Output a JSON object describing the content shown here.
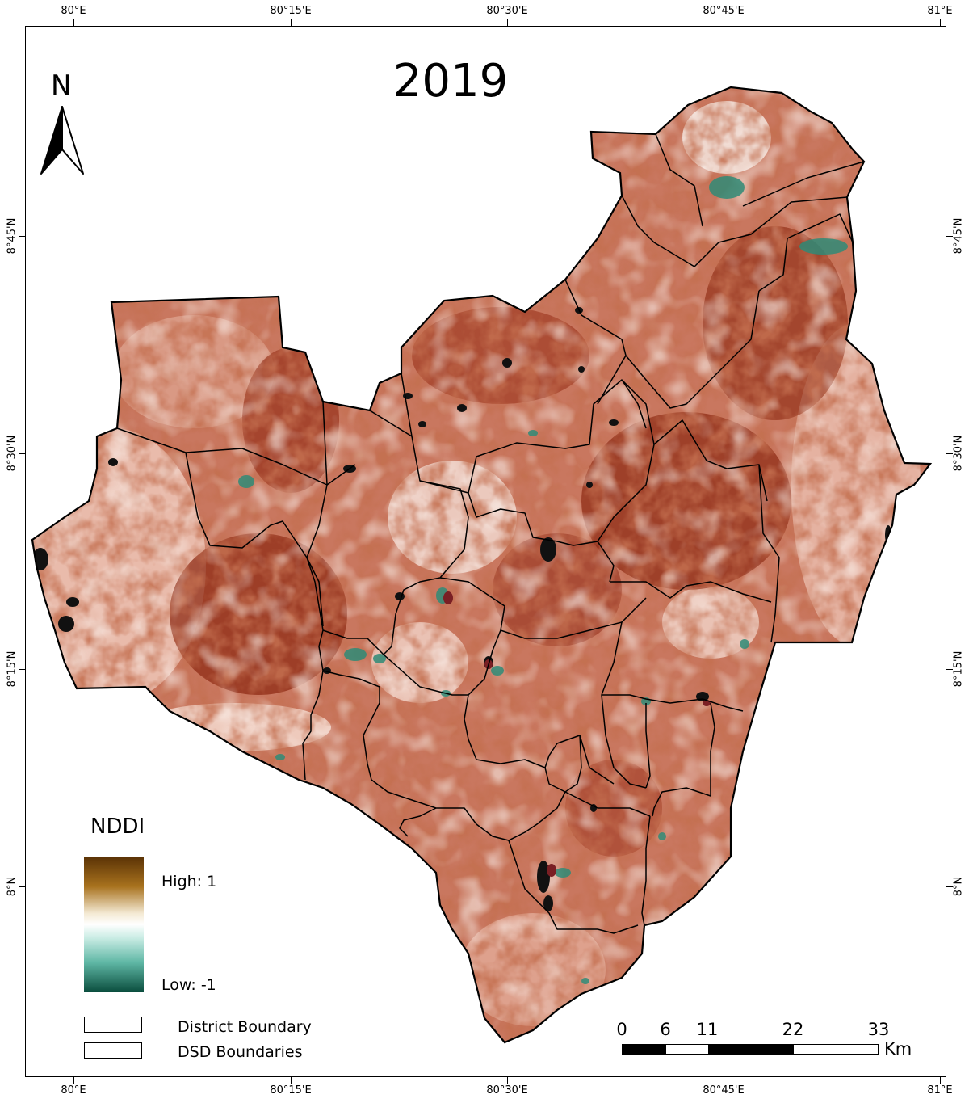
{
  "title": "2019",
  "north_label": "N",
  "coords": {
    "top": [
      "80°E",
      "80°15'E",
      "80°30'E",
      "80°45'E",
      "81°E"
    ],
    "bottom": [
      "80°E",
      "80°15'E",
      "80°30'E",
      "80°45'E",
      "81°E"
    ],
    "left": [
      "8°45'N",
      "8°30'N",
      "8°15'N",
      "8°N"
    ],
    "right": [
      "8°45'N",
      "8°30'N",
      "8°15'N",
      "8°N"
    ]
  },
  "legend": {
    "title": "NDDI",
    "high_label": "High: 1",
    "low_label": "Low: -1",
    "ramp_colors": [
      "#5a3205",
      "#a8721e",
      "#ffffff",
      "#5fb7a5",
      "#0a4d3d"
    ],
    "items": [
      {
        "label": "District Boundary"
      },
      {
        "label": "DSD Boundaries"
      }
    ]
  },
  "scale_bar": {
    "ticks": [
      "0",
      "6",
      "11",
      "22",
      "33"
    ],
    "unit": "Km"
  },
  "colors": {
    "high_nddi": "#8b2a14",
    "mid_nddi": "#c86a50",
    "low_nddi": "#f3d9cf",
    "water": "#0b5a4a"
  }
}
